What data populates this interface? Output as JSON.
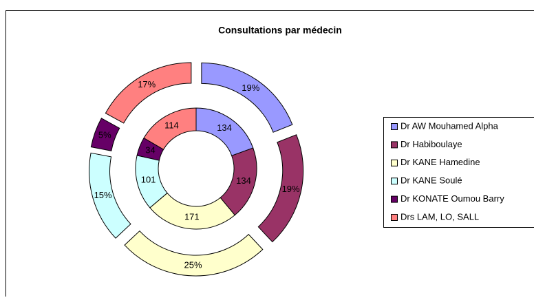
{
  "chart_data": {
    "type": "doughnut",
    "title": "Consultations par médecin",
    "categories": [
      "Dr AW Mouhamed Alpha",
      "Dr Habiboulaye",
      "Dr KANE Hamedine",
      "Dr KANE Soulé",
      "Dr KONATE Oumou Barry",
      "Drs LAM, LO, SALL"
    ],
    "colors": [
      "#9999ff",
      "#993366",
      "#ffffcc",
      "#ccffff",
      "#660066",
      "#ff8080"
    ],
    "series": [
      {
        "values": [
          134,
          134,
          171,
          101,
          34,
          114
        ]
      },
      {
        "values": [
          19,
          19,
          25,
          15,
          5,
          17
        ],
        "value_labels": [
          "19%",
          "19%",
          "25%",
          "15%",
          "5%",
          "17%"
        ]
      }
    ]
  }
}
